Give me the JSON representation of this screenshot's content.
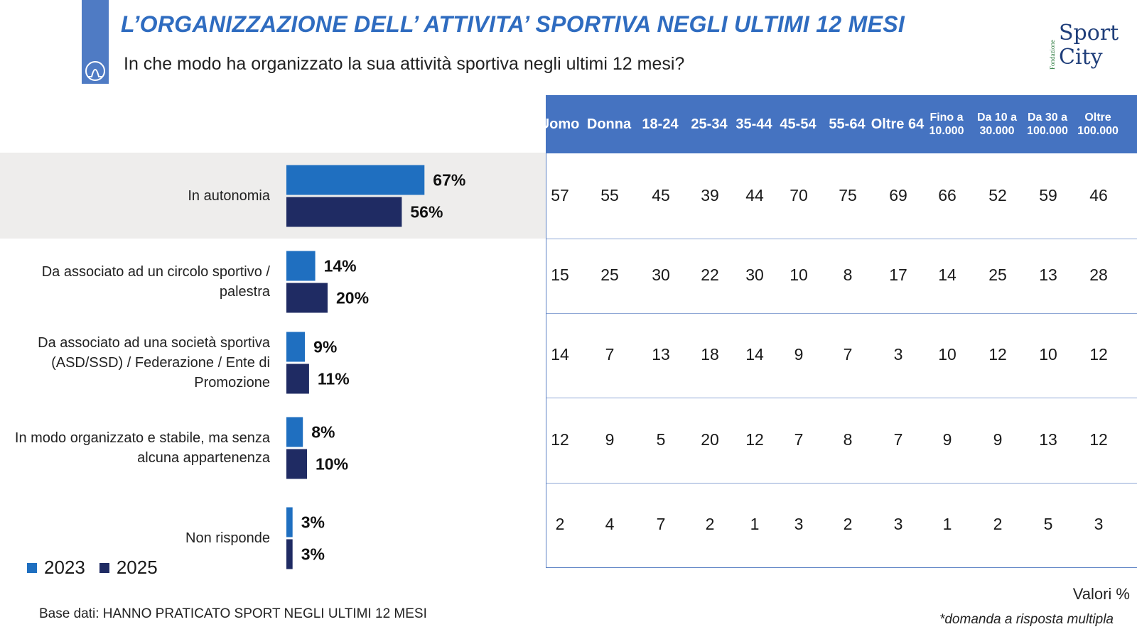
{
  "header": {
    "title": "L’ORGANIZZAZIONE DELL’ ATTIVITA’ SPORTIVA NEGLI ULTIMI 12 MESI",
    "subtitle": "In che modo ha organizzato la sua attività sportiva negli ultimi 12 mesi?",
    "brand_small": "Fondazione",
    "brand_line1": "Sport",
    "brand_line2": "City"
  },
  "colors": {
    "series_2023": "#1f6fc0",
    "series_2025": "#1f2b63",
    "table_header": "#4573c1",
    "title": "#2f6cc0",
    "highlight": "#eeedec"
  },
  "chart_data": {
    "type": "bar",
    "orientation": "horizontal",
    "categories": [
      "In autonomia",
      "Da associato ad un circolo sportivo / palestra",
      "Da associato ad una società sportiva (ASD/SSD) / Federazione / Ente di Promozione",
      "In modo organizzato e stabile, ma senza alcuna appartenenza",
      "Non risponde"
    ],
    "series": [
      {
        "name": "2023",
        "values": [
          67,
          14,
          9,
          8,
          3
        ]
      },
      {
        "name": "2025",
        "values": [
          56,
          20,
          11,
          10,
          3
        ]
      }
    ],
    "value_labels": [
      [
        "67%",
        "56%"
      ],
      [
        "14%",
        "20%"
      ],
      [
        "9%",
        "11%"
      ],
      [
        "8%",
        "10%"
      ],
      [
        "3%",
        "3%"
      ]
    ],
    "legend": "bottom-left",
    "highlighted_category": "In autonomia"
  },
  "table": {
    "columns": [
      "Uomo",
      "Donna",
      "18-24",
      "25-34",
      "35-44",
      "45-54",
      "55-64",
      "Oltre 64",
      "Fino a 10.000",
      "Da 10 a 30.000",
      "Da 30 a 100.000",
      "Oltre 100.000"
    ],
    "rows": [
      [
        57,
        55,
        45,
        39,
        44,
        70,
        75,
        69,
        66,
        52,
        59,
        46
      ],
      [
        15,
        25,
        30,
        22,
        30,
        10,
        8,
        17,
        14,
        25,
        13,
        28
      ],
      [
        14,
        7,
        13,
        18,
        14,
        9,
        7,
        3,
        10,
        12,
        10,
        12
      ],
      [
        12,
        9,
        5,
        20,
        12,
        7,
        8,
        7,
        9,
        9,
        13,
        12
      ],
      [
        2,
        4,
        7,
        2,
        1,
        3,
        2,
        3,
        1,
        2,
        5,
        3
      ]
    ]
  },
  "footer": {
    "base": "Base dati: HANNO PRATICATO SPORT NEGLI ULTIMI 12 MESI",
    "unit": "Valori %",
    "note": "*domanda a risposta multipla"
  }
}
